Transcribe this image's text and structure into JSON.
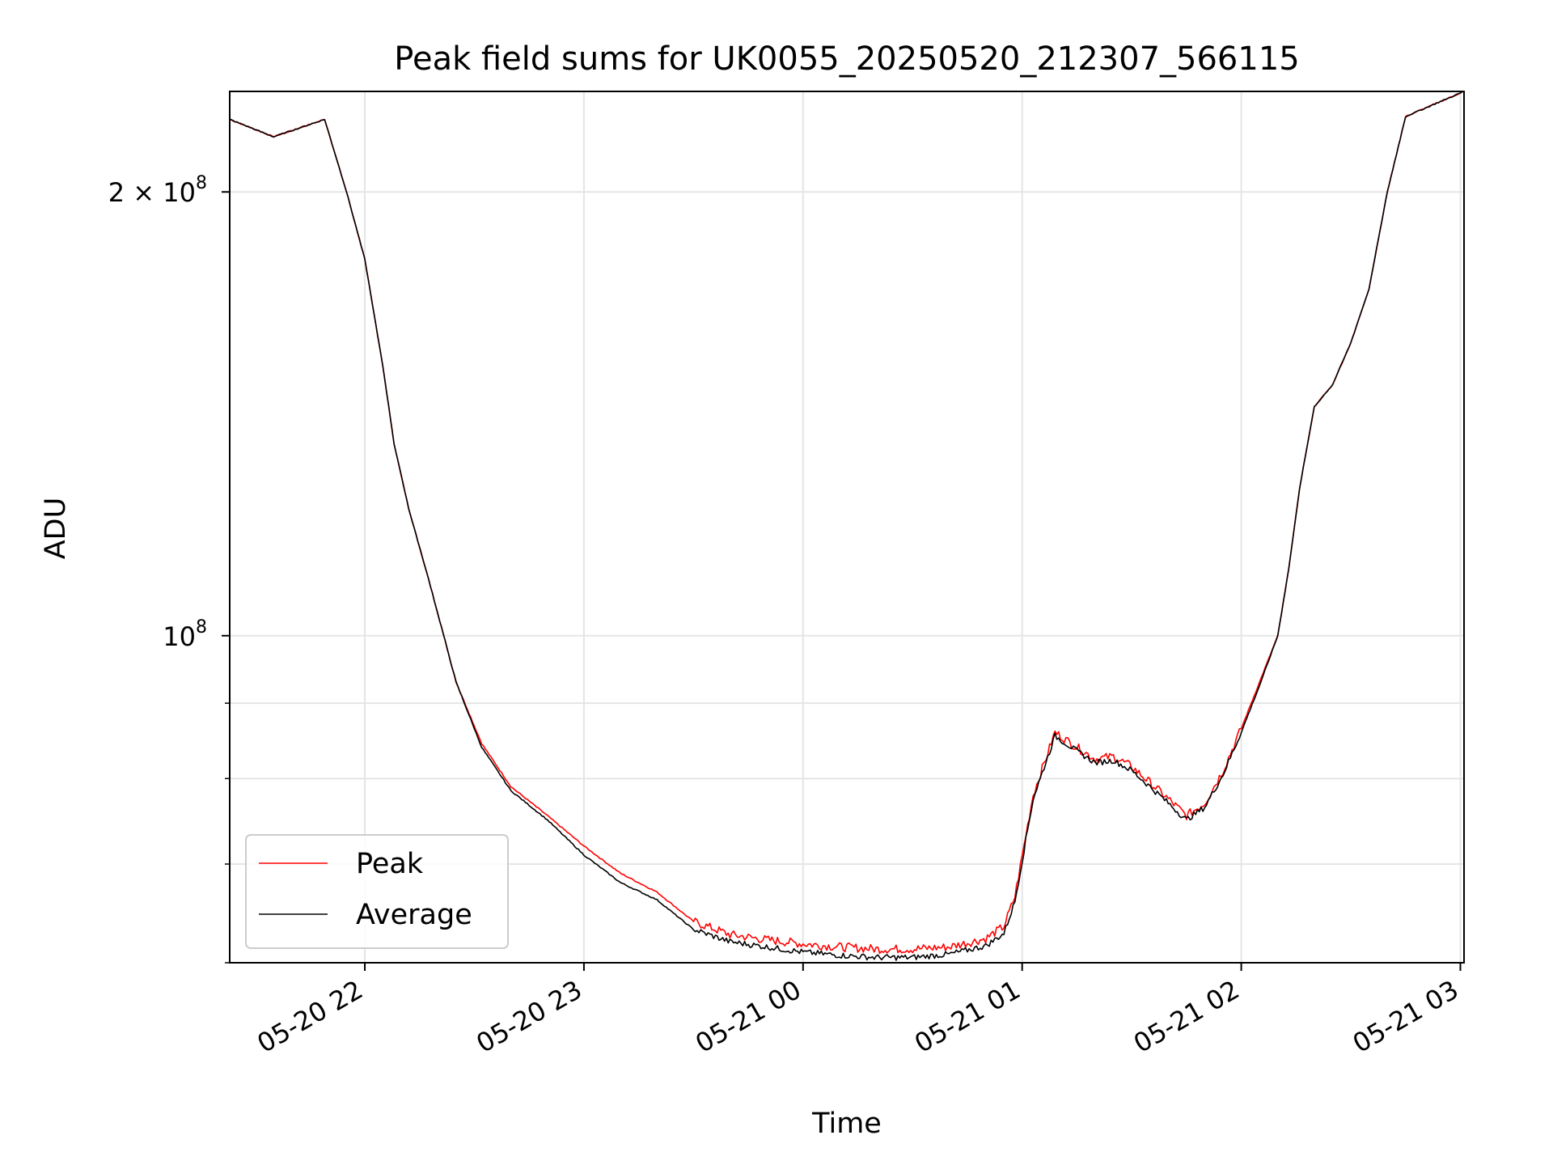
{
  "chart_data": {
    "type": "line",
    "title": "Peak field sums for UK0055_20250520_212307_566115",
    "xlabel": "Time",
    "ylabel": "ADU",
    "yscale": "log",
    "xlim": [
      "05-20 21:23",
      "05-21 03:01"
    ],
    "ylim": [
      60000000,
      234000000
    ],
    "grid": true,
    "legend_position": "lower-left",
    "x_tick_labels": [
      "05-20 22",
      "05-20 23",
      "05-21 00",
      "05-21 01",
      "05-21 02",
      "05-21 03"
    ],
    "y_tick_labels": [
      {
        "value": 200000000,
        "base": "2 × 10",
        "exp": "8"
      },
      {
        "value": 100000000,
        "base": "10",
        "exp": "8"
      }
    ],
    "x_times": [
      "05-20 21:23",
      "05-20 21:35",
      "05-20 21:49",
      "05-20 21:55",
      "05-20 22:00",
      "05-20 22:05",
      "05-20 22:08",
      "05-20 22:12",
      "05-20 22:18",
      "05-20 22:25",
      "05-20 22:32",
      "05-20 22:40",
      "05-20 22:50",
      "05-20 23:00",
      "05-20 23:10",
      "05-20 23:20",
      "05-20 23:30",
      "05-20 23:40",
      "05-20 23:50",
      "05-21 00:00",
      "05-21 00:10",
      "05-21 00:20",
      "05-21 00:30",
      "05-21 00:40",
      "05-21 00:50",
      "05-21 00:55",
      "05-21 00:58",
      "05-21 01:03",
      "05-21 01:09",
      "05-21 01:15",
      "05-21 01:20",
      "05-21 01:25",
      "05-21 01:30",
      "05-21 01:35",
      "05-21 01:40",
      "05-21 01:45",
      "05-21 01:50",
      "05-21 01:55",
      "05-21 02:00",
      "05-21 02:05",
      "05-21 02:10",
      "05-21 02:13",
      "05-21 02:16",
      "05-21 02:20",
      "05-21 02:25",
      "05-21 02:30",
      "05-21 02:35",
      "05-21 02:40",
      "05-21 02:45",
      "05-21 03:01"
    ],
    "series": [
      {
        "name": "Peak",
        "color": "#ff0000",
        "values": [
          224000000,
          218000000,
          224000000,
          200000000,
          180000000,
          152000000,
          135000000,
          122000000,
          108000000,
          93000000,
          84500000,
          79000000,
          75500000,
          72000000,
          69000000,
          67000000,
          64000000,
          62700000,
          62200000,
          61800000,
          61500000,
          61300000,
          61300000,
          61500000,
          62300000,
          63500000,
          66500000,
          78000000,
          86000000,
          84000000,
          82500000,
          82800000,
          81500000,
          79500000,
          77500000,
          75500000,
          77000000,
          81000000,
          86500000,
          93000000,
          100000000,
          111000000,
          126000000,
          143000000,
          148000000,
          158000000,
          172000000,
          200000000,
          225000000,
          234000000
        ]
      },
      {
        "name": "Average",
        "color": "#000000",
        "values": [
          224000000,
          218000000,
          224000000,
          200000000,
          180000000,
          152000000,
          135000000,
          122000000,
          108000000,
          93000000,
          84000000,
          78500000,
          75000000,
          71000000,
          68000000,
          66200000,
          63200000,
          62000000,
          61500000,
          61000000,
          60700000,
          60500000,
          60500000,
          60800000,
          61600000,
          62800000,
          66000000,
          77500000,
          85500000,
          83500000,
          82000000,
          82300000,
          81000000,
          79000000,
          77000000,
          75000000,
          76500000,
          80500000,
          86000000,
          92500000,
          100000000,
          111000000,
          126000000,
          143000000,
          148000000,
          158000000,
          172000000,
          200000000,
          225000000,
          234000000
        ]
      }
    ]
  }
}
